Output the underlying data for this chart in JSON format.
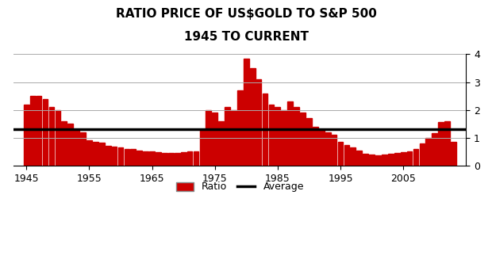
{
  "title_line1": "RATIO PRICE OF US$GOLD TO S&P 500",
  "title_line2": "1945 TO CURRENT",
  "bar_color": "#cc0000",
  "average_color": "#000000",
  "average_value": 1.3,
  "ylim": [
    0.0,
    4.0
  ],
  "yticks": [
    0.0,
    1.0,
    2.0,
    3.0,
    4.0
  ],
  "background_color": "#ffffff",
  "years": [
    1945,
    1946,
    1947,
    1948,
    1949,
    1950,
    1951,
    1952,
    1953,
    1954,
    1955,
    1956,
    1957,
    1958,
    1959,
    1960,
    1961,
    1962,
    1963,
    1964,
    1965,
    1966,
    1967,
    1968,
    1969,
    1970,
    1971,
    1972,
    1973,
    1974,
    1975,
    1976,
    1977,
    1978,
    1979,
    1980,
    1981,
    1982,
    1983,
    1984,
    1985,
    1986,
    1987,
    1988,
    1989,
    1990,
    1991,
    1992,
    1993,
    1994,
    1995,
    1996,
    1997,
    1998,
    1999,
    2000,
    2001,
    2002,
    2003,
    2004,
    2005,
    2006,
    2007,
    2008,
    2009,
    2010,
    2011,
    2012,
    2013
  ],
  "values": [
    2.2,
    2.5,
    2.5,
    2.4,
    2.1,
    2.0,
    1.6,
    1.5,
    1.3,
    1.2,
    0.9,
    0.85,
    0.82,
    0.72,
    0.67,
    0.65,
    0.6,
    0.58,
    0.55,
    0.52,
    0.5,
    0.48,
    0.46,
    0.45,
    0.45,
    0.48,
    0.5,
    0.52,
    1.3,
    2.0,
    1.9,
    1.6,
    2.1,
    2.0,
    2.7,
    3.85,
    3.5,
    3.1,
    2.6,
    2.2,
    2.1,
    2.0,
    2.3,
    2.1,
    1.9,
    1.7,
    1.4,
    1.3,
    1.2,
    1.1,
    0.85,
    0.75,
    0.65,
    0.55,
    0.42,
    0.38,
    0.37,
    0.38,
    0.42,
    0.45,
    0.48,
    0.52,
    0.6,
    0.8,
    1.0,
    1.15,
    1.55,
    1.6,
    0.85
  ],
  "xlabel_ticks": [
    1945,
    1955,
    1965,
    1975,
    1985,
    1995,
    2005
  ],
  "legend_ratio_label": "Ratio",
  "legend_avg_label": "Average"
}
